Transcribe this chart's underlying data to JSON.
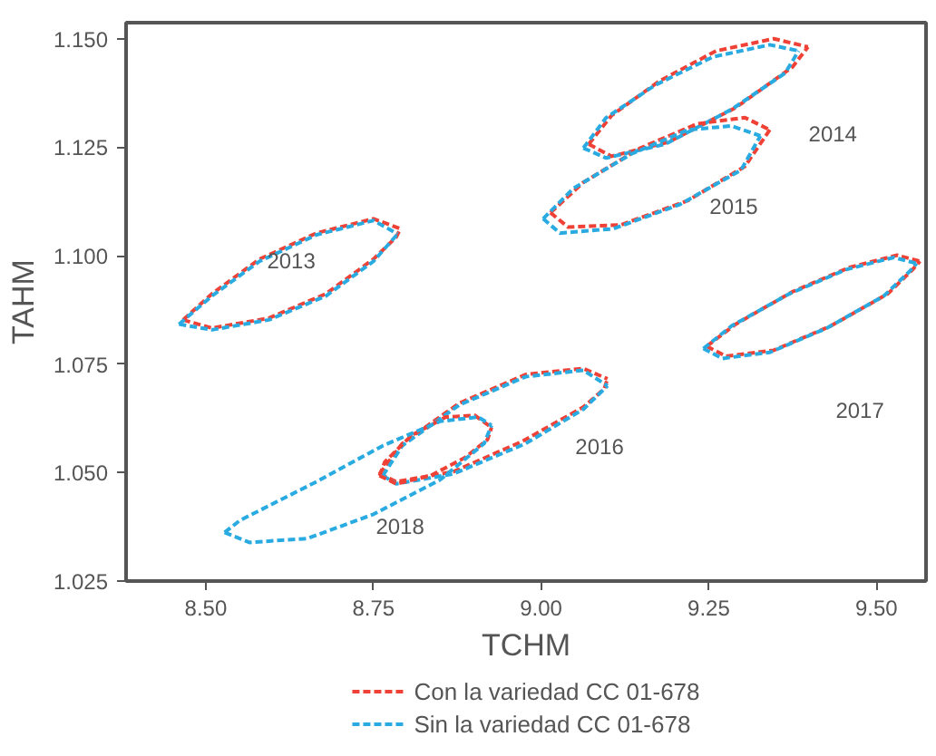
{
  "chart_data": {
    "type": "line",
    "xlabel": "TCHM",
    "ylabel": "TAHM",
    "xlim": [
      8.381,
      9.574
    ],
    "ylim": [
      1.025,
      1.1537
    ],
    "xticks": [
      {
        "value": 8.5,
        "label": "8.50"
      },
      {
        "value": 8.75,
        "label": "8.75"
      },
      {
        "value": 9.0,
        "label": "9.00"
      },
      {
        "value": 9.25,
        "label": "9.25"
      },
      {
        "value": 9.5,
        "label": "9.50"
      }
    ],
    "yticks": [
      {
        "value": 1.025,
        "label": "1.025"
      },
      {
        "value": 1.05,
        "label": "1.050"
      },
      {
        "value": 1.075,
        "label": "1.075"
      },
      {
        "value": 1.1,
        "label": "1.100"
      },
      {
        "value": 1.125,
        "label": "1.125"
      },
      {
        "value": 1.15,
        "label": "1.150"
      }
    ],
    "legend": "bottom",
    "line_style": "dashed",
    "series": [
      {
        "name": "Con la variedad CC 01-678",
        "color": "#ef4136",
        "x": [
          8.466,
          8.509,
          8.58,
          8.665,
          8.75,
          8.79
        ],
        "values": [
          1.0852,
          1.0912,
          1.0992,
          1.1052,
          1.1085,
          1.1062
        ]
      },
      {
        "color": "#ef4136",
        "x": [
          8.466,
          8.509,
          8.594,
          8.679,
          8.75,
          8.784,
          8.79
        ],
        "values": [
          1.0852,
          1.0833,
          1.0856,
          1.0912,
          1.0992,
          1.1043,
          1.1062
        ]
      },
      {
        "name": "Sin la variedad CC 01-678",
        "color": "#29abe2",
        "x": [
          8.46,
          8.509,
          8.58,
          8.665,
          8.75,
          8.786
        ],
        "values": [
          1.0842,
          1.0907,
          1.0987,
          1.1048,
          1.1081,
          1.105
        ]
      },
      {
        "color": "#29abe2",
        "x": [
          8.46,
          8.509,
          8.594,
          8.679,
          8.75,
          8.786
        ],
        "values": [
          1.0842,
          1.0829,
          1.0852,
          1.0907,
          1.0987,
          1.105
        ]
      },
      {
        "color": "#ef4136",
        "x": [
          9.071,
          9.105,
          9.176,
          9.261,
          9.347,
          9.398
        ],
        "values": [
          1.1257,
          1.1323,
          1.1402,
          1.1472,
          1.15,
          1.1481
        ]
      },
      {
        "color": "#ef4136",
        "x": [
          9.071,
          9.105,
          9.19,
          9.29,
          9.375,
          9.398
        ],
        "values": [
          1.1257,
          1.1229,
          1.1262,
          1.1341,
          1.1435,
          1.1481
        ]
      },
      {
        "color": "#29abe2",
        "x": [
          9.063,
          9.097,
          9.17,
          9.256,
          9.341,
          9.384
        ],
        "values": [
          1.1248,
          1.1318,
          1.1393,
          1.1458,
          1.1486,
          1.1472
        ]
      },
      {
        "color": "#29abe2",
        "x": [
          9.063,
          9.097,
          9.185,
          9.284,
          9.364,
          9.384
        ],
        "values": [
          1.1248,
          1.1225,
          1.1257,
          1.1337,
          1.1421,
          1.1472
        ]
      },
      {
        "color": "#ef4136",
        "x": [
          9.014,
          9.063,
          9.148,
          9.233,
          9.304,
          9.341
        ],
        "values": [
          1.1099,
          1.1169,
          1.1248,
          1.1304,
          1.1318,
          1.129
        ]
      },
      {
        "color": "#ef4136",
        "x": [
          9.014,
          9.04,
          9.119,
          9.219,
          9.304,
          9.341
        ],
        "values": [
          1.1099,
          1.1066,
          1.1071,
          1.1127,
          1.1206,
          1.129
        ]
      },
      {
        "color": "#29abe2",
        "x": [
          9.003,
          9.048,
          9.134,
          9.219,
          9.284,
          9.327
        ],
        "values": [
          1.1085,
          1.1155,
          1.1234,
          1.129,
          1.1299,
          1.1276
        ]
      },
      {
        "color": "#29abe2",
        "x": [
          9.003,
          9.028,
          9.108,
          9.207,
          9.298,
          9.327
        ],
        "values": [
          1.1085,
          1.1052,
          1.1062,
          1.1118,
          1.1197,
          1.1276
        ]
      },
      {
        "color": "#ef4136",
        "x": [
          8.759,
          8.793,
          8.878,
          8.977,
          9.063,
          9.099
        ],
        "values": [
          1.0497,
          1.0567,
          1.066,
          1.0726,
          1.074,
          1.0716
        ]
      },
      {
        "color": "#ef4136",
        "x": [
          8.759,
          8.784,
          8.869,
          8.972,
          9.063,
          9.094,
          9.099
        ],
        "values": [
          1.0497,
          1.0479,
          1.0502,
          1.0572,
          1.0651,
          1.0693,
          1.0716
        ]
      },
      {
        "color": "#29abe2",
        "x": [
          8.764,
          8.793,
          8.878,
          8.977,
          9.063,
          9.099
        ],
        "values": [
          1.0493,
          1.0562,
          1.0656,
          1.0721,
          1.0736,
          1.07
        ]
      },
      {
        "color": "#29abe2",
        "x": [
          8.764,
          8.784,
          8.869,
          8.977,
          9.063,
          9.099
        ],
        "values": [
          1.0493,
          1.0474,
          1.0497,
          1.0567,
          1.0646,
          1.07
        ]
      },
      {
        "color": "#ef4136",
        "x": [
          9.247,
          9.29,
          9.375,
          9.46,
          9.531,
          9.565
        ],
        "values": [
          1.0791,
          1.0842,
          1.0917,
          1.0973,
          1.1001,
          1.0987
        ]
      },
      {
        "color": "#ef4136",
        "x": [
          9.247,
          9.276,
          9.347,
          9.432,
          9.517,
          9.554,
          9.565
        ],
        "values": [
          1.0791,
          1.0768,
          1.0782,
          1.0838,
          1.0912,
          1.0968,
          1.0987
        ]
      },
      {
        "color": "#29abe2",
        "x": [
          9.242,
          9.284,
          9.37,
          9.455,
          9.526,
          9.56
        ],
        "values": [
          1.0786,
          1.0838,
          1.0912,
          1.0968,
          1.0996,
          1.0982
        ]
      },
      {
        "color": "#29abe2",
        "x": [
          9.242,
          9.27,
          9.341,
          9.426,
          9.511,
          9.549,
          9.56
        ],
        "values": [
          1.0786,
          1.0763,
          1.0777,
          1.0833,
          1.0907,
          1.0963,
          1.0982
        ]
      },
      {
        "color": "#ef4136",
        "x": [
          8.759,
          8.767,
          8.807,
          8.858,
          8.901,
          8.926
        ],
        "values": [
          1.0493,
          1.0525,
          1.0586,
          1.0628,
          1.0632,
          1.0604
        ]
      },
      {
        "color": "#ef4136",
        "x": [
          8.759,
          8.784,
          8.835,
          8.886,
          8.92,
          8.926
        ],
        "values": [
          1.0493,
          1.0474,
          1.0493,
          1.0534,
          1.0576,
          1.0604
        ]
      },
      {
        "color": "#29abe2",
        "x": [
          8.528,
          8.551,
          8.665,
          8.764,
          8.849,
          8.906,
          8.926
        ],
        "values": [
          1.0362,
          1.039,
          1.0479,
          1.0562,
          1.0618,
          1.0628,
          1.0609
        ]
      },
      {
        "color": "#29abe2",
        "x": [
          8.528,
          8.565,
          8.651,
          8.75,
          8.849,
          8.915,
          8.926
        ],
        "values": [
          1.0362,
          1.0339,
          1.0348,
          1.0404,
          1.0483,
          1.0567,
          1.0609
        ]
      }
    ],
    "annotations": [
      "2013",
      "2014",
      "2015",
      "2016",
      "2017",
      "2018"
    ]
  }
}
